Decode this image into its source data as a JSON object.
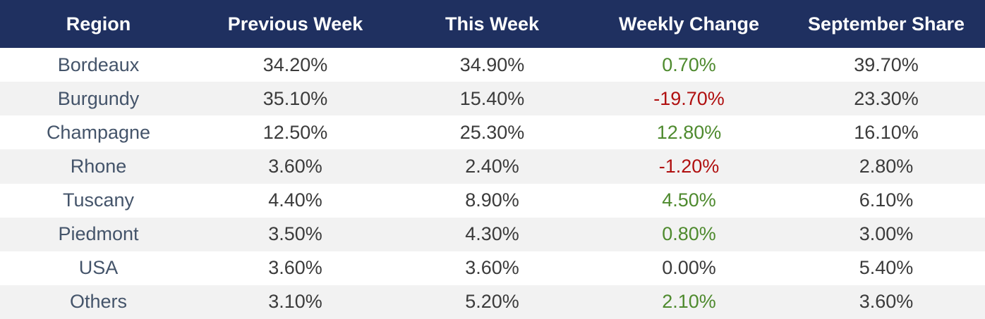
{
  "colors": {
    "header_bg": "#1f3060",
    "header_text": "#ffffff",
    "row_alt_bg": "#f2f2f2",
    "row_bg": "#ffffff",
    "text": "#3b3b3b",
    "region_text": "#44546a",
    "positive": "#4e8a2e",
    "negative": "#b01010",
    "neutral": "#3b3b3b"
  },
  "chart_data": {
    "type": "table",
    "columns": [
      "Region",
      "Previous Week",
      "This Week",
      "Weekly Change",
      "September Share"
    ],
    "rows": [
      {
        "region": "Bordeaux",
        "previous_week": "34.20%",
        "this_week": "34.90%",
        "weekly_change": "0.70%",
        "change_sign": "positive",
        "september_share": "39.70%"
      },
      {
        "region": "Burgundy",
        "previous_week": "35.10%",
        "this_week": "15.40%",
        "weekly_change": "-19.70%",
        "change_sign": "negative",
        "september_share": "23.30%"
      },
      {
        "region": "Champagne",
        "previous_week": "12.50%",
        "this_week": "25.30%",
        "weekly_change": "12.80%",
        "change_sign": "positive",
        "september_share": "16.10%"
      },
      {
        "region": "Rhone",
        "previous_week": "3.60%",
        "this_week": "2.40%",
        "weekly_change": "-1.20%",
        "change_sign": "negative",
        "september_share": "2.80%"
      },
      {
        "region": "Tuscany",
        "previous_week": "4.40%",
        "this_week": "8.90%",
        "weekly_change": "4.50%",
        "change_sign": "positive",
        "september_share": "6.10%"
      },
      {
        "region": "Piedmont",
        "previous_week": "3.50%",
        "this_week": "4.30%",
        "weekly_change": "0.80%",
        "change_sign": "positive",
        "september_share": "3.00%"
      },
      {
        "region": "USA",
        "previous_week": "3.60%",
        "this_week": "3.60%",
        "weekly_change": "0.00%",
        "change_sign": "neutral",
        "september_share": "5.40%"
      },
      {
        "region": "Others",
        "previous_week": "3.10%",
        "this_week": "5.20%",
        "weekly_change": "2.10%",
        "change_sign": "positive",
        "september_share": "3.60%"
      }
    ]
  }
}
